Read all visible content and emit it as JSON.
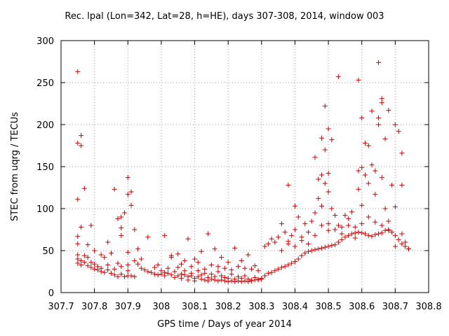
{
  "chart_data": {
    "type": "scatter",
    "title": "Rec. lpal (Lon=342, Lat=28, h=HE), days 307-308, 2014, window 003",
    "xlabel": "GPS time / Days of year 2014",
    "ylabel": "STEC from uqrg / TECUs",
    "xlim": [
      307.7,
      308.8
    ],
    "ylim": [
      0,
      300
    ],
    "xticks": [
      "307.7",
      "307.8",
      "307.9",
      "308",
      "308.1",
      "308.2",
      "308.3",
      "308.4",
      "308.5",
      "308.6",
      "308.7",
      "308.8"
    ],
    "yticks": [
      "0",
      "50",
      "100",
      "150",
      "200",
      "250",
      "300"
    ],
    "grid": true,
    "marker": "+",
    "color": "#cc0000",
    "points": [
      [
        307.75,
        263
      ],
      [
        307.75,
        178
      ],
      [
        307.76,
        175
      ],
      [
        307.76,
        187
      ],
      [
        307.75,
        111
      ],
      [
        307.77,
        124
      ],
      [
        307.79,
        80
      ],
      [
        307.76,
        78
      ],
      [
        307.75,
        67
      ],
      [
        307.75,
        58
      ],
      [
        307.75,
        45
      ],
      [
        307.75,
        40
      ],
      [
        307.75,
        35
      ],
      [
        307.76,
        33
      ],
      [
        307.76,
        38
      ],
      [
        307.77,
        44
      ],
      [
        307.77,
        36
      ],
      [
        307.78,
        32
      ],
      [
        307.78,
        42
      ],
      [
        307.79,
        30
      ],
      [
        307.79,
        36
      ],
      [
        307.8,
        28
      ],
      [
        307.8,
        34
      ],
      [
        307.81,
        27
      ],
      [
        307.81,
        31
      ],
      [
        307.82,
        25
      ],
      [
        307.82,
        29
      ],
      [
        307.83,
        24
      ],
      [
        307.83,
        42
      ],
      [
        307.84,
        27
      ],
      [
        307.84,
        33
      ],
      [
        307.85,
        23
      ],
      [
        307.85,
        47
      ],
      [
        307.86,
        21
      ],
      [
        307.86,
        28
      ],
      [
        307.87,
        19
      ],
      [
        307.87,
        35
      ],
      [
        307.88,
        22
      ],
      [
        307.88,
        31
      ],
      [
        307.89,
        19
      ],
      [
        307.9,
        20
      ],
      [
        307.9,
        26
      ],
      [
        307.91,
        20
      ],
      [
        307.92,
        19
      ],
      [
        307.78,
        57
      ],
      [
        307.8,
        50
      ],
      [
        307.82,
        45
      ],
      [
        307.84,
        60
      ],
      [
        307.86,
        123
      ],
      [
        307.88,
        77
      ],
      [
        307.87,
        88
      ],
      [
        307.88,
        90
      ],
      [
        307.89,
        95
      ],
      [
        307.9,
        117
      ],
      [
        307.9,
        137
      ],
      [
        307.91,
        120
      ],
      [
        307.91,
        104
      ],
      [
        307.88,
        68
      ],
      [
        307.9,
        48
      ],
      [
        307.92,
        75
      ],
      [
        307.93,
        52
      ],
      [
        307.9,
        33
      ],
      [
        307.92,
        38
      ],
      [
        307.93,
        34
      ],
      [
        307.94,
        29
      ],
      [
        307.95,
        27
      ],
      [
        307.96,
        25
      ],
      [
        307.97,
        24
      ],
      [
        307.98,
        22
      ],
      [
        307.99,
        21
      ],
      [
        307.94,
        40
      ],
      [
        307.96,
        66
      ],
      [
        307.98,
        30
      ],
      [
        307.99,
        33
      ],
      [
        308.0,
        26
      ],
      [
        308.0,
        22
      ],
      [
        308.01,
        24
      ],
      [
        308.01,
        20
      ],
      [
        308.02,
        23
      ],
      [
        308.02,
        29
      ],
      [
        308.03,
        21
      ],
      [
        308.03,
        42
      ],
      [
        308.04,
        25
      ],
      [
        308.04,
        18
      ],
      [
        308.05,
        20
      ],
      [
        308.05,
        30
      ],
      [
        308.06,
        22
      ],
      [
        308.06,
        17
      ],
      [
        308.07,
        21
      ],
      [
        308.07,
        26
      ],
      [
        308.08,
        19
      ],
      [
        308.08,
        15
      ],
      [
        308.09,
        20
      ],
      [
        308.09,
        23
      ],
      [
        308.1,
        17
      ],
      [
        308.1,
        14
      ],
      [
        308.11,
        19
      ],
      [
        308.11,
        26
      ],
      [
        308.12,
        16
      ],
      [
        308.12,
        21
      ],
      [
        308.13,
        15
      ],
      [
        308.13,
        23
      ],
      [
        308.14,
        14
      ],
      [
        308.14,
        18
      ],
      [
        308.15,
        16
      ],
      [
        308.15,
        22
      ],
      [
        308.16,
        15
      ],
      [
        308.16,
        19
      ],
      [
        308.17,
        14
      ],
      [
        308.17,
        25
      ],
      [
        308.18,
        15
      ],
      [
        308.18,
        20
      ],
      [
        308.19,
        14
      ],
      [
        308.19,
        18
      ],
      [
        308.2,
        13
      ],
      [
        308.2,
        17
      ],
      [
        308.21,
        14
      ],
      [
        308.21,
        22
      ],
      [
        308.22,
        13
      ],
      [
        308.22,
        16
      ],
      [
        308.23,
        14
      ],
      [
        308.23,
        19
      ],
      [
        308.24,
        13
      ],
      [
        308.24,
        17
      ],
      [
        308.25,
        14
      ],
      [
        308.25,
        20
      ],
      [
        308.26,
        13
      ],
      [
        308.26,
        16
      ],
      [
        308.27,
        15
      ],
      [
        308.27,
        14
      ],
      [
        308.28,
        15
      ],
      [
        308.28,
        18
      ],
      [
        308.29,
        15
      ],
      [
        308.29,
        16
      ],
      [
        308.3,
        16
      ],
      [
        308.3,
        17
      ],
      [
        308.01,
        68
      ],
      [
        308.03,
        44
      ],
      [
        308.05,
        46
      ],
      [
        308.07,
        38
      ],
      [
        308.08,
        64
      ],
      [
        308.1,
        40
      ],
      [
        308.12,
        49
      ],
      [
        308.14,
        70
      ],
      [
        308.16,
        52
      ],
      [
        308.18,
        42
      ],
      [
        308.2,
        36
      ],
      [
        308.22,
        53
      ],
      [
        308.24,
        38
      ],
      [
        308.26,
        45
      ],
      [
        308.28,
        32
      ],
      [
        308.06,
        34
      ],
      [
        308.09,
        31
      ],
      [
        308.11,
        36
      ],
      [
        308.13,
        28
      ],
      [
        308.15,
        33
      ],
      [
        308.17,
        31
      ],
      [
        308.19,
        29
      ],
      [
        308.21,
        27
      ],
      [
        308.23,
        31
      ],
      [
        308.25,
        29
      ],
      [
        308.27,
        28
      ],
      [
        308.29,
        26
      ],
      [
        308.31,
        20
      ],
      [
        308.31,
        55
      ],
      [
        308.32,
        23
      ],
      [
        308.32,
        58
      ],
      [
        308.33,
        24
      ],
      [
        308.33,
        64
      ],
      [
        308.34,
        26
      ],
      [
        308.34,
        60
      ],
      [
        308.35,
        28
      ],
      [
        308.35,
        66
      ],
      [
        308.36,
        30
      ],
      [
        308.36,
        82
      ],
      [
        308.37,
        31
      ],
      [
        308.37,
        72
      ],
      [
        308.38,
        33
      ],
      [
        308.38,
        128
      ],
      [
        308.38,
        61
      ],
      [
        308.39,
        35
      ],
      [
        308.39,
        68
      ],
      [
        308.4,
        37
      ],
      [
        308.4,
        103
      ],
      [
        308.4,
        75
      ],
      [
        308.41,
        40
      ],
      [
        308.41,
        90
      ],
      [
        308.42,
        44
      ],
      [
        308.42,
        66
      ],
      [
        308.43,
        47
      ],
      [
        308.43,
        82
      ],
      [
        308.44,
        49
      ],
      [
        308.44,
        72
      ],
      [
        308.45,
        50
      ],
      [
        308.45,
        85
      ],
      [
        308.46,
        51
      ],
      [
        308.46,
        161
      ],
      [
        308.46,
        95
      ],
      [
        308.47,
        52
      ],
      [
        308.47,
        135
      ],
      [
        308.47,
        112
      ],
      [
        308.48,
        53
      ],
      [
        308.48,
        184
      ],
      [
        308.48,
        140
      ],
      [
        308.48,
        103
      ],
      [
        308.49,
        54
      ],
      [
        308.49,
        222
      ],
      [
        308.49,
        170
      ],
      [
        308.49,
        130
      ],
      [
        308.5,
        55
      ],
      [
        308.5,
        195
      ],
      [
        308.5,
        142
      ],
      [
        308.5,
        120
      ],
      [
        308.5,
        82
      ],
      [
        308.51,
        56
      ],
      [
        308.51,
        182
      ],
      [
        308.51,
        100
      ],
      [
        308.52,
        57
      ],
      [
        308.52,
        75
      ],
      [
        308.53,
        60
      ],
      [
        308.53,
        257
      ],
      [
        308.53,
        80
      ],
      [
        308.54,
        63
      ],
      [
        308.54,
        70
      ],
      [
        308.55,
        66
      ],
      [
        308.55,
        92
      ],
      [
        308.56,
        68
      ],
      [
        308.56,
        88
      ],
      [
        308.57,
        70
      ],
      [
        308.57,
        96
      ],
      [
        308.58,
        71
      ],
      [
        308.58,
        78
      ],
      [
        308.59,
        72
      ],
      [
        308.59,
        253
      ],
      [
        308.59,
        145
      ],
      [
        308.59,
        123
      ],
      [
        308.6,
        71
      ],
      [
        308.6,
        208
      ],
      [
        308.6,
        149
      ],
      [
        308.6,
        104
      ],
      [
        308.61,
        70
      ],
      [
        308.61,
        140
      ],
      [
        308.61,
        178
      ],
      [
        308.62,
        68
      ],
      [
        308.62,
        175
      ],
      [
        308.62,
        130
      ],
      [
        308.63,
        67
      ],
      [
        308.63,
        216
      ],
      [
        308.63,
        152
      ],
      [
        308.64,
        69
      ],
      [
        308.64,
        145
      ],
      [
        308.64,
        117
      ],
      [
        308.65,
        70
      ],
      [
        308.65,
        274
      ],
      [
        308.65,
        208
      ],
      [
        308.65,
        200
      ],
      [
        308.66,
        71
      ],
      [
        308.66,
        231
      ],
      [
        308.66,
        226
      ],
      [
        308.66,
        137
      ],
      [
        308.67,
        74
      ],
      [
        308.67,
        183
      ],
      [
        308.67,
        100
      ],
      [
        308.68,
        75
      ],
      [
        308.68,
        217
      ],
      [
        308.68,
        85
      ],
      [
        308.69,
        72
      ],
      [
        308.69,
        128
      ],
      [
        308.7,
        68
      ],
      [
        308.7,
        200
      ],
      [
        308.7,
        102
      ],
      [
        308.71,
        63
      ],
      [
        308.71,
        192
      ],
      [
        308.72,
        58
      ],
      [
        308.72,
        166
      ],
      [
        308.72,
        128
      ],
      [
        308.73,
        55
      ],
      [
        308.73,
        60
      ],
      [
        308.74,
        52
      ],
      [
        308.74,
        52
      ],
      [
        308.36,
        50
      ],
      [
        308.38,
        58
      ],
      [
        308.4,
        55
      ],
      [
        308.42,
        62
      ],
      [
        308.44,
        58
      ],
      [
        308.46,
        68
      ],
      [
        308.48,
        80
      ],
      [
        308.5,
        74
      ],
      [
        308.52,
        92
      ],
      [
        308.54,
        78
      ],
      [
        308.56,
        80
      ],
      [
        308.58,
        65
      ],
      [
        308.6,
        82
      ],
      [
        308.62,
        90
      ],
      [
        308.64,
        84
      ],
      [
        308.66,
        80
      ],
      [
        308.68,
        74
      ],
      [
        308.7,
        55
      ],
      [
        308.72,
        70
      ]
    ]
  }
}
